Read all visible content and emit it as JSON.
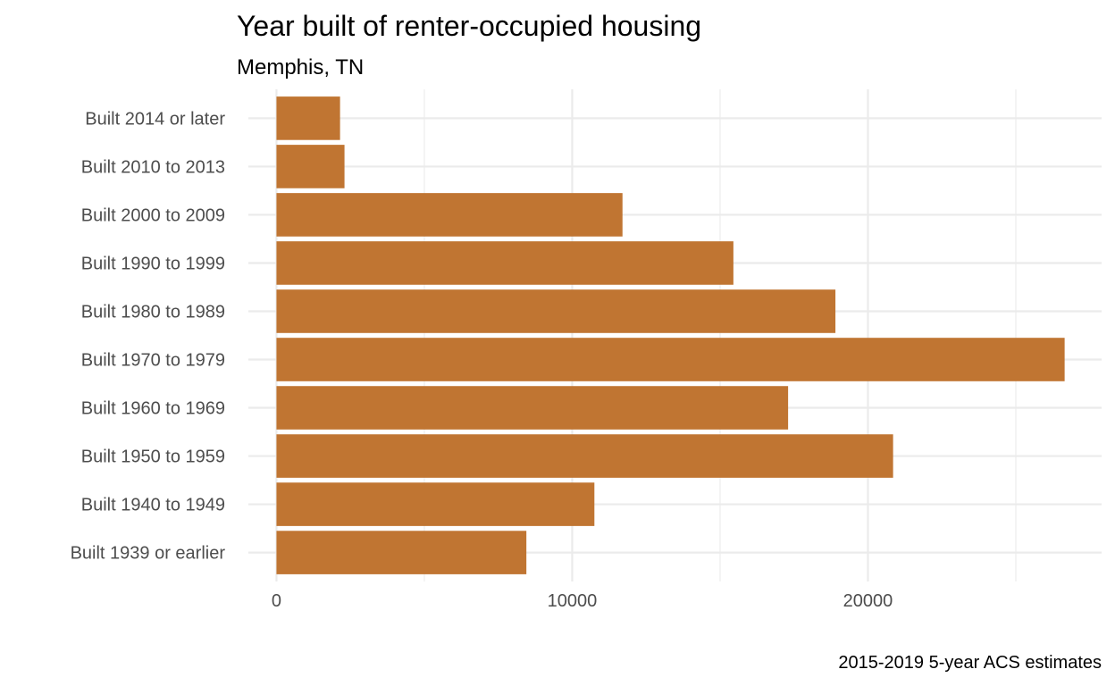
{
  "chart_data": {
    "type": "bar",
    "orientation": "horizontal",
    "title": "Year built of renter-occupied housing",
    "subtitle": "Memphis, TN",
    "caption": "2015-2019 5-year ACS estimates",
    "xlabel": "",
    "ylabel": "",
    "categories": [
      "Built 2014 or later",
      "Built 2010 to 2013",
      "Built 2000 to 2009",
      "Built 1990 to 1999",
      "Built 1980 to 1989",
      "Built 1970 to 1979",
      "Built 1960 to 1969",
      "Built 1950 to 1959",
      "Built 1940 to 1949",
      "Built 1939 or earlier"
    ],
    "values": [
      2150,
      2300,
      11700,
      15450,
      18900,
      26650,
      17300,
      20850,
      10750,
      8450
    ],
    "xlim": [
      -950,
      27900
    ],
    "x_ticks": [
      0,
      10000,
      20000
    ],
    "x_tick_labels": [
      "0",
      "10000",
      "20000"
    ],
    "x_minor_ticks": [
      5000,
      15000,
      25000
    ],
    "grid": true,
    "bar_color": "#c07532",
    "grid_color": "#ebebeb"
  }
}
